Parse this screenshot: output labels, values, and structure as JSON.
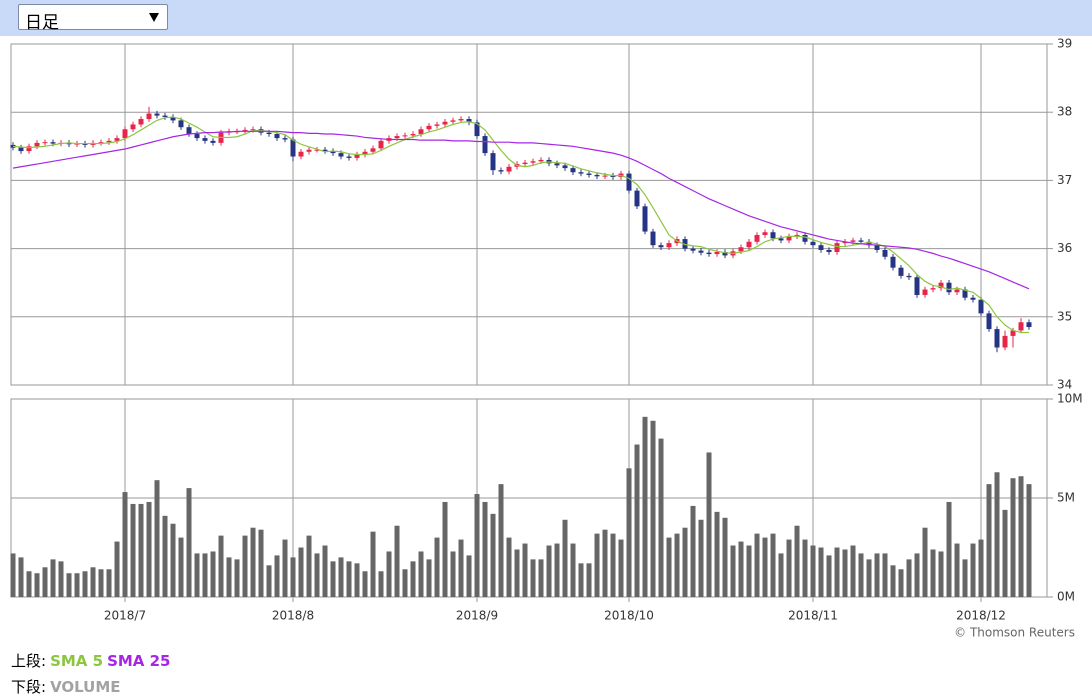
{
  "toolbar": {
    "period": "日足"
  },
  "chart_data": [
    {
      "type": "candlestick",
      "open": [
        37.52,
        37.48,
        37.43,
        37.5,
        37.55,
        37.56,
        37.54,
        37.55,
        37.53,
        37.54,
        37.52,
        37.55,
        37.56,
        37.58,
        37.62,
        37.75,
        37.82,
        37.9,
        37.98,
        37.95,
        37.93,
        37.88,
        37.78,
        37.68,
        37.62,
        37.58,
        37.55,
        37.7,
        37.72,
        37.72,
        37.74,
        37.75,
        37.7,
        37.68,
        37.62,
        37.6,
        37.35,
        37.42,
        37.45,
        37.45,
        37.43,
        37.4,
        37.35,
        37.33,
        37.38,
        37.42,
        37.47,
        37.58,
        37.62,
        37.65,
        37.66,
        37.68,
        37.75,
        37.8,
        37.82,
        37.86,
        37.88,
        37.9,
        37.85,
        37.65,
        37.4,
        37.15,
        37.13,
        37.2,
        37.24,
        37.26,
        37.28,
        37.3,
        37.25,
        37.22,
        37.18,
        37.12,
        37.1,
        37.08,
        37.06,
        37.07,
        37.05,
        37.1,
        36.85,
        36.62,
        36.25,
        36.05,
        36.02,
        36.08,
        36.14,
        36.0,
        35.97,
        35.94,
        35.92,
        35.95,
        35.9,
        35.96,
        36.02,
        36.1,
        36.2,
        36.24,
        36.15,
        36.12,
        36.18,
        36.2,
        36.1,
        36.05,
        35.98,
        35.95,
        36.08,
        36.1,
        36.12,
        36.1,
        36.05,
        35.98,
        35.88,
        35.72,
        35.6,
        35.58,
        35.32,
        35.4,
        35.42,
        35.5,
        35.36,
        35.4,
        35.28,
        35.25,
        35.05,
        34.82,
        34.55,
        34.72,
        34.8,
        34.92
      ],
      "high": [
        37.56,
        37.52,
        37.54,
        37.59,
        37.6,
        37.6,
        37.59,
        37.59,
        37.58,
        37.58,
        37.59,
        37.6,
        37.62,
        37.66,
        37.79,
        37.86,
        37.94,
        38.08,
        38.02,
        37.99,
        37.97,
        37.92,
        37.82,
        37.72,
        37.66,
        37.62,
        37.74,
        37.76,
        37.76,
        37.78,
        37.79,
        37.79,
        37.74,
        37.72,
        37.66,
        37.64,
        37.46,
        37.49,
        37.49,
        37.49,
        37.47,
        37.44,
        37.39,
        37.42,
        37.46,
        37.51,
        37.62,
        37.66,
        37.69,
        37.7,
        37.72,
        37.79,
        37.84,
        37.86,
        37.9,
        37.92,
        37.94,
        37.94,
        37.89,
        37.69,
        37.44,
        37.19,
        37.24,
        37.28,
        37.3,
        37.32,
        37.34,
        37.34,
        37.29,
        37.26,
        37.22,
        37.16,
        37.14,
        37.12,
        37.11,
        37.11,
        37.14,
        37.14,
        36.89,
        36.66,
        36.29,
        36.09,
        36.12,
        36.18,
        36.18,
        36.04,
        36.01,
        35.98,
        35.99,
        35.99,
        36.0,
        36.06,
        36.14,
        36.24,
        36.28,
        36.28,
        36.19,
        36.22,
        36.24,
        36.24,
        36.14,
        36.09,
        36.02,
        36.12,
        36.14,
        36.16,
        36.16,
        36.14,
        36.09,
        36.02,
        35.92,
        35.76,
        35.64,
        35.62,
        35.44,
        35.46,
        35.54,
        35.54,
        35.44,
        35.44,
        35.32,
        35.29,
        35.09,
        34.86,
        34.8,
        34.84,
        34.98,
        34.96
      ],
      "low": [
        37.44,
        37.39,
        37.39,
        37.46,
        37.51,
        37.5,
        37.5,
        37.49,
        37.49,
        37.48,
        37.48,
        37.51,
        37.52,
        37.54,
        37.58,
        37.71,
        37.78,
        37.86,
        37.91,
        37.89,
        37.84,
        37.74,
        37.64,
        37.58,
        37.54,
        37.51,
        37.51,
        37.66,
        37.68,
        37.68,
        37.7,
        37.66,
        37.64,
        37.58,
        37.56,
        37.28,
        37.31,
        37.38,
        37.41,
        37.39,
        37.36,
        37.31,
        37.29,
        37.29,
        37.34,
        37.38,
        37.43,
        37.54,
        37.58,
        37.61,
        37.62,
        37.64,
        37.71,
        37.76,
        37.78,
        37.82,
        37.84,
        37.81,
        37.61,
        37.36,
        37.08,
        37.09,
        37.09,
        37.16,
        37.2,
        37.22,
        37.24,
        37.21,
        37.18,
        37.14,
        37.08,
        37.06,
        37.04,
        37.02,
        37.02,
        37.01,
        37.01,
        36.81,
        36.58,
        36.21,
        36.01,
        35.98,
        35.98,
        36.04,
        35.96,
        35.93,
        35.9,
        35.88,
        35.88,
        35.86,
        35.86,
        35.92,
        35.98,
        36.06,
        36.16,
        36.11,
        36.08,
        36.08,
        36.14,
        36.06,
        36.01,
        35.94,
        35.91,
        35.91,
        36.04,
        36.06,
        36.06,
        36.01,
        35.94,
        35.84,
        35.68,
        35.56,
        35.54,
        35.28,
        35.28,
        35.36,
        35.38,
        35.32,
        35.32,
        35.24,
        35.21,
        35.01,
        34.78,
        34.48,
        34.51,
        34.55,
        34.76,
        34.81
      ],
      "close": [
        37.48,
        37.43,
        37.5,
        37.55,
        37.56,
        37.54,
        37.55,
        37.53,
        37.54,
        37.52,
        37.55,
        37.56,
        37.58,
        37.62,
        37.75,
        37.82,
        37.9,
        37.98,
        37.95,
        37.93,
        37.88,
        37.78,
        37.68,
        37.62,
        37.58,
        37.55,
        37.7,
        37.72,
        37.72,
        37.74,
        37.75,
        37.7,
        37.68,
        37.62,
        37.6,
        37.35,
        37.42,
        37.45,
        37.45,
        37.43,
        37.4,
        37.35,
        37.33,
        37.38,
        37.42,
        37.47,
        37.58,
        37.62,
        37.65,
        37.66,
        37.68,
        37.75,
        37.8,
        37.82,
        37.86,
        37.88,
        37.9,
        37.85,
        37.65,
        37.4,
        37.15,
        37.13,
        37.2,
        37.24,
        37.26,
        37.28,
        37.3,
        37.25,
        37.22,
        37.18,
        37.12,
        37.1,
        37.08,
        37.06,
        37.07,
        37.05,
        37.1,
        36.85,
        36.62,
        36.25,
        36.05,
        36.02,
        36.08,
        36.14,
        36.0,
        35.97,
        35.94,
        35.92,
        35.95,
        35.9,
        35.96,
        36.02,
        36.1,
        36.2,
        36.24,
        36.15,
        36.12,
        36.18,
        36.2,
        36.1,
        36.05,
        35.98,
        35.95,
        36.08,
        36.1,
        36.12,
        36.1,
        36.05,
        35.98,
        35.88,
        35.72,
        35.6,
        35.58,
        35.32,
        35.4,
        35.42,
        35.5,
        35.36,
        35.4,
        35.28,
        35.25,
        35.05,
        34.82,
        34.55,
        34.72,
        34.8,
        34.92,
        34.85
      ],
      "up_color": "#e5264a",
      "down_color": "#263484",
      "series": [
        {
          "name": "SMA 5",
          "color": "#8cc63f",
          "values": [
            37.5,
            37.49,
            37.48,
            37.49,
            37.5,
            37.52,
            37.54,
            37.55,
            37.54,
            37.54,
            37.54,
            37.54,
            37.55,
            37.57,
            37.61,
            37.67,
            37.74,
            37.81,
            37.88,
            37.92,
            37.93,
            37.9,
            37.84,
            37.78,
            37.71,
            37.64,
            37.63,
            37.63,
            37.64,
            37.68,
            37.73,
            37.73,
            37.72,
            37.7,
            37.67,
            37.59,
            37.53,
            37.49,
            37.46,
            37.42,
            37.43,
            37.42,
            37.39,
            37.38,
            37.38,
            37.39,
            37.44,
            37.5,
            37.55,
            37.6,
            37.64,
            37.67,
            37.71,
            37.74,
            37.78,
            37.82,
            37.85,
            37.86,
            37.83,
            37.74,
            37.59,
            37.44,
            37.31,
            37.22,
            37.2,
            37.22,
            37.26,
            37.27,
            37.26,
            37.25,
            37.21,
            37.17,
            37.14,
            37.11,
            37.09,
            37.07,
            37.07,
            37.03,
            36.94,
            36.79,
            36.6,
            36.4,
            36.2,
            36.11,
            36.06,
            36.04,
            36.03,
            35.99,
            35.96,
            35.94,
            35.93,
            35.95,
            35.97,
            36.03,
            36.1,
            36.14,
            36.16,
            36.18,
            36.18,
            36.17,
            36.13,
            36.09,
            36.06,
            36.03,
            36.03,
            36.05,
            36.07,
            36.09,
            36.07,
            36.03,
            35.95,
            35.85,
            35.75,
            35.62,
            35.52,
            35.46,
            35.44,
            35.4,
            35.42,
            35.39,
            35.36,
            35.27,
            35.17,
            35.0,
            34.88,
            34.8,
            34.77,
            34.77
          ]
        },
        {
          "name": "SMA 25",
          "color": "#a626e6",
          "values": [
            37.18,
            37.2,
            37.22,
            37.24,
            37.26,
            37.28,
            37.3,
            37.32,
            37.34,
            37.36,
            37.38,
            37.4,
            37.42,
            37.44,
            37.46,
            37.49,
            37.52,
            37.55,
            37.58,
            37.61,
            37.64,
            37.66,
            37.68,
            37.69,
            37.7,
            37.7,
            37.71,
            37.71,
            37.72,
            37.72,
            37.72,
            37.72,
            37.72,
            37.72,
            37.71,
            37.7,
            37.7,
            37.69,
            37.69,
            37.68,
            37.68,
            37.67,
            37.66,
            37.65,
            37.63,
            37.62,
            37.61,
            37.6,
            37.6,
            37.6,
            37.6,
            37.59,
            37.59,
            37.59,
            37.59,
            37.58,
            37.58,
            37.58,
            37.57,
            37.57,
            37.56,
            37.56,
            37.56,
            37.55,
            37.55,
            37.55,
            37.54,
            37.53,
            37.52,
            37.51,
            37.5,
            37.48,
            37.46,
            37.44,
            37.42,
            37.4,
            37.37,
            37.33,
            37.28,
            37.22,
            37.16,
            37.1,
            37.03,
            36.97,
            36.91,
            36.85,
            36.79,
            36.73,
            36.68,
            36.63,
            36.58,
            36.53,
            36.48,
            36.44,
            36.4,
            36.36,
            36.32,
            36.29,
            36.26,
            36.23,
            36.2,
            36.17,
            36.14,
            36.12,
            36.1,
            36.08,
            36.07,
            36.06,
            36.05,
            36.04,
            36.03,
            36.02,
            36.01,
            35.99,
            35.96,
            35.93,
            35.89,
            35.86,
            35.82,
            35.78,
            35.74,
            35.7,
            35.66,
            35.61,
            35.56,
            35.51,
            35.46,
            35.41
          ]
        }
      ],
      "ylim": [
        34,
        39
      ],
      "yticks": [
        34,
        35,
        36,
        37,
        38,
        39
      ],
      "grid": true
    },
    {
      "type": "bar",
      "categories": [
        null,
        null,
        null,
        null,
        null,
        null,
        null,
        null,
        null,
        null,
        null,
        null,
        null,
        null,
        "2018/7",
        null,
        null,
        null,
        null,
        null,
        null,
        null,
        null,
        null,
        null,
        null,
        null,
        null,
        null,
        null,
        null,
        null,
        null,
        null,
        null,
        "2018/8",
        null,
        null,
        null,
        null,
        null,
        null,
        null,
        null,
        null,
        null,
        null,
        null,
        null,
        null,
        null,
        null,
        null,
        null,
        null,
        null,
        null,
        null,
        "2018/9",
        null,
        null,
        null,
        null,
        null,
        null,
        null,
        null,
        null,
        null,
        null,
        null,
        null,
        null,
        null,
        null,
        null,
        null,
        "2018/10",
        null,
        null,
        null,
        null,
        null,
        null,
        null,
        null,
        null,
        null,
        null,
        null,
        null,
        null,
        null,
        null,
        null,
        null,
        null,
        null,
        null,
        null,
        "2018/11",
        null,
        null,
        null,
        null,
        null,
        null,
        null,
        null,
        null,
        null,
        null,
        null,
        null,
        null,
        null,
        null,
        null,
        null,
        null,
        null,
        "2018/12",
        null,
        null,
        null,
        null,
        null,
        null
      ],
      "series": [
        {
          "name": "VOLUME",
          "color": "#666666",
          "values": [
            2200000,
            2000000,
            1300000,
            1200000,
            1500000,
            1900000,
            1800000,
            1200000,
            1200000,
            1300000,
            1500000,
            1400000,
            1400000,
            2800000,
            5300000,
            4700000,
            4700000,
            4800000,
            5900000,
            4100000,
            3700000,
            3000000,
            5500000,
            2200000,
            2200000,
            2300000,
            3100000,
            2000000,
            1900000,
            3100000,
            3500000,
            3400000,
            1600000,
            2100000,
            2900000,
            2000000,
            2500000,
            3100000,
            2200000,
            2600000,
            1800000,
            2000000,
            1800000,
            1700000,
            1300000,
            3300000,
            1300000,
            2300000,
            3600000,
            1400000,
            1800000,
            2300000,
            1900000,
            3000000,
            4800000,
            2300000,
            2900000,
            2100000,
            5200000,
            4800000,
            4200000,
            5700000,
            3000000,
            2400000,
            2700000,
            1900000,
            1900000,
            2600000,
            2700000,
            3900000,
            2700000,
            1700000,
            1700000,
            3200000,
            3400000,
            3200000,
            2900000,
            6500000,
            7700000,
            9100000,
            8900000,
            8000000,
            3000000,
            3200000,
            3500000,
            4600000,
            3900000,
            7300000,
            4300000,
            4000000,
            2600000,
            2800000,
            2600000,
            3200000,
            3000000,
            3200000,
            2200000,
            2900000,
            3600000,
            2900000,
            2600000,
            2500000,
            2100000,
            2500000,
            2400000,
            2600000,
            2200000,
            1900000,
            2200000,
            2200000,
            1600000,
            1400000,
            1900000,
            2200000,
            3500000,
            2400000,
            2300000,
            4800000,
            2700000,
            1900000,
            2700000,
            2900000,
            5700000,
            6300000,
            4400000,
            6000000,
            6100000,
            5700000
          ]
        }
      ],
      "ylim": [
        0,
        10000000
      ],
      "yticks": [
        {
          "value": 0,
          "label": "0M"
        },
        {
          "value": 5000000,
          "label": "5M"
        },
        {
          "value": 10000000,
          "label": "10M"
        }
      ],
      "grid": true
    }
  ],
  "credit": "© Thomson Reuters",
  "footer": {
    "upper": "上段:",
    "lower": "下段:"
  }
}
